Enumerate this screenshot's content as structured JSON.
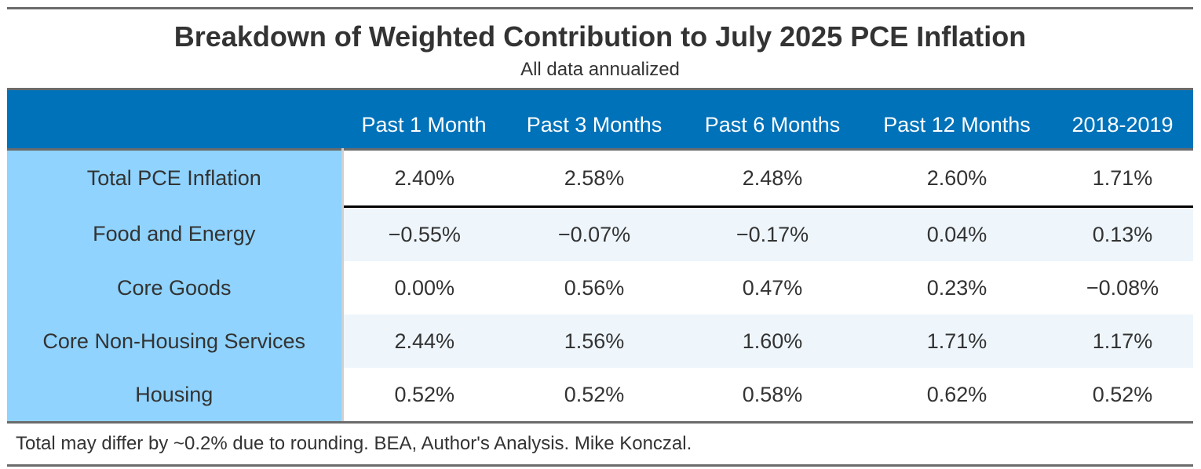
{
  "chart_data": {
    "type": "table",
    "title": "Breakdown of Weighted Contribution to July 2025 PCE Inflation",
    "subtitle": "All data annualized",
    "columns": [
      "",
      "Past 1 Month",
      "Past 3 Months",
      "Past 6 Months",
      "Past 12 Months",
      "2018-2019"
    ],
    "rows": [
      {
        "label": "Total PCE Inflation",
        "values": [
          "2.40%",
          "2.58%",
          "2.48%",
          "2.60%",
          "1.71%"
        ]
      },
      {
        "label": "Food and Energy",
        "values": [
          "−0.55%",
          "−0.07%",
          "−0.17%",
          "0.04%",
          "0.13%"
        ]
      },
      {
        "label": "Core Goods",
        "values": [
          "0.00%",
          "0.56%",
          "0.47%",
          "0.23%",
          "−0.08%"
        ]
      },
      {
        "label": "Core Non-Housing Services",
        "values": [
          "2.44%",
          "1.56%",
          "1.60%",
          "1.71%",
          "1.17%"
        ]
      },
      {
        "label": "Housing",
        "values": [
          "0.52%",
          "0.52%",
          "0.58%",
          "0.62%",
          "0.52%"
        ]
      }
    ],
    "footnote": "Total may differ by ~0.2% due to rounding. BEA, Author's Analysis. Mike Konczal.",
    "colors": {
      "header": "#0072b9",
      "row_label": "#8fd3fe",
      "stripe": "#eef6fc"
    }
  }
}
